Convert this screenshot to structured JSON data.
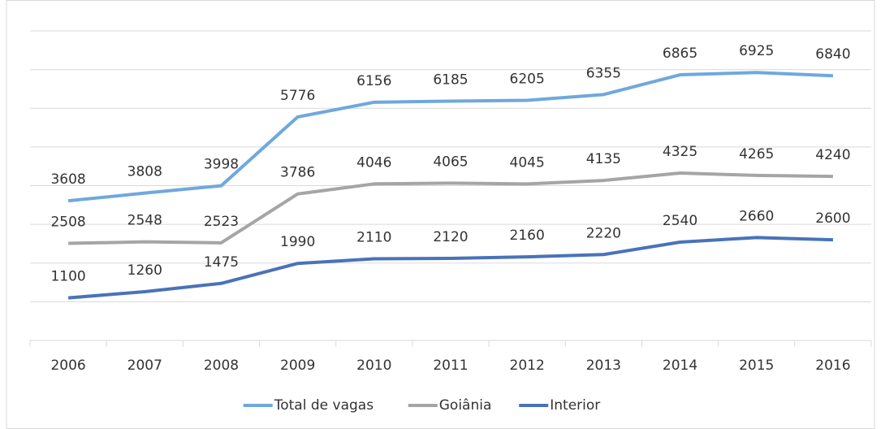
{
  "chart_data": {
    "type": "line",
    "categories": [
      "2006",
      "2007",
      "2008",
      "2009",
      "2010",
      "2011",
      "2012",
      "2013",
      "2014",
      "2015",
      "2016"
    ],
    "series": [
      {
        "name": "Total de vagas",
        "color": "#6fa8dc",
        "values": [
          3608,
          3808,
          3998,
          5776,
          6156,
          6185,
          6205,
          6355,
          6865,
          6925,
          6840
        ]
      },
      {
        "name": "Goiânia",
        "color": "#a5a5a5",
        "values": [
          2508,
          2548,
          2523,
          3786,
          4046,
          4065,
          4045,
          4135,
          4325,
          4265,
          4240
        ]
      },
      {
        "name": "Interior",
        "color": "#4a72b8",
        "values": [
          1100,
          1260,
          1475,
          1990,
          2110,
          2120,
          2160,
          2220,
          2540,
          2660,
          2600
        ]
      }
    ],
    "ylim": [
      0,
      8000
    ],
    "yticks": [
      0,
      1000,
      2000,
      3000,
      4000,
      5000,
      6000,
      7000,
      8000
    ],
    "grid": true
  }
}
